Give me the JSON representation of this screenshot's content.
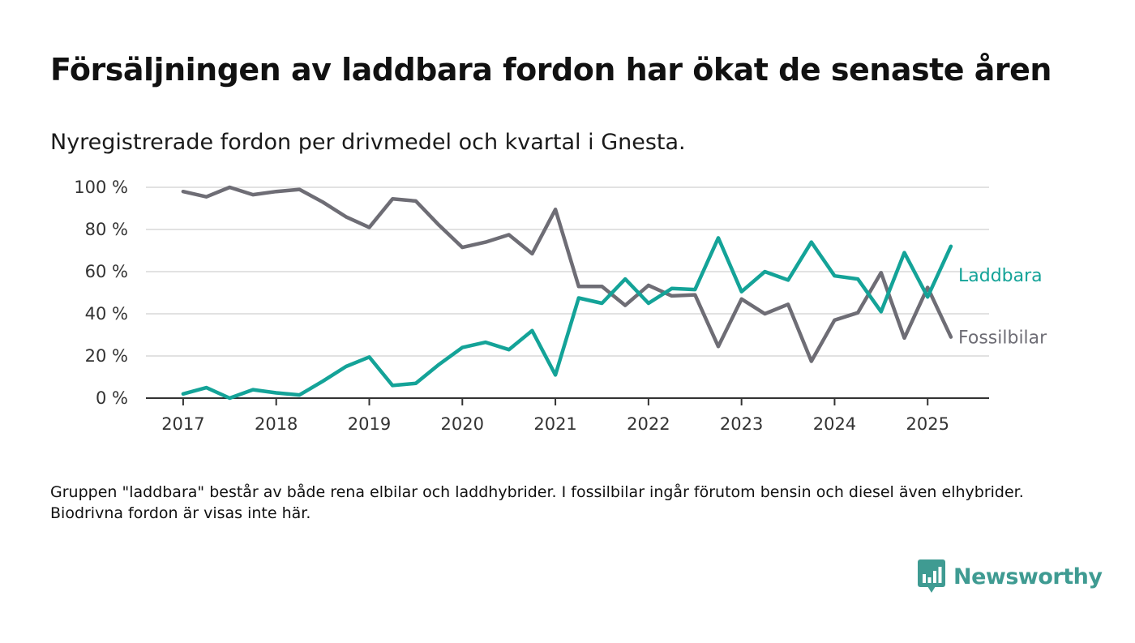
{
  "title": "Försäljningen av laddbara fordon har ökat de senaste åren",
  "subtitle": "Nyregistrerade fordon per drivmedel och kvartal i Gnesta.",
  "footnote": "Gruppen \"laddbara\" består av både rena elbilar och laddhybrider. I fossilbilar ingår förutom bensin och diesel även elhybrider. Biodrivna fordon är visas inte här.",
  "brand": {
    "name": "Newsworthy",
    "icon": "newsworthy-logo-icon",
    "color": "#3f9b92"
  },
  "chart_data": {
    "type": "line",
    "x": [
      2017.0,
      2017.25,
      2017.5,
      2017.75,
      2018.0,
      2018.25,
      2018.5,
      2018.75,
      2019.0,
      2019.25,
      2019.5,
      2019.75,
      2020.0,
      2020.25,
      2020.5,
      2020.75,
      2021.0,
      2021.25,
      2021.5,
      2021.75,
      2022.0,
      2022.25,
      2022.5,
      2022.75,
      2023.0,
      2023.25,
      2023.5,
      2023.75,
      2024.0,
      2024.25,
      2024.5,
      2024.75,
      2025.0,
      2025.25
    ],
    "series": [
      {
        "name": "Laddbara",
        "color": "#14a398",
        "values": [
          2,
          5,
          0,
          4,
          2.5,
          1.5,
          8,
          15,
          19.5,
          6,
          7,
          16,
          24,
          26.5,
          23,
          32,
          11,
          47.5,
          45,
          56.5,
          45,
          52,
          51.5,
          76,
          50.5,
          60,
          56,
          74,
          58,
          56.5,
          41,
          69,
          48,
          72
        ]
      },
      {
        "name": "Fossilbilar",
        "color": "#6e6d75",
        "values": [
          98,
          95.5,
          100,
          96.5,
          98,
          99,
          93,
          86,
          81,
          94.5,
          93.5,
          82,
          71.5,
          74,
          77.5,
          68.5,
          89.5,
          53,
          53,
          44,
          53.5,
          48.5,
          49,
          24.5,
          47,
          40,
          44.5,
          17.5,
          37,
          40.5,
          59.5,
          28.5,
          52.5,
          29
        ]
      }
    ],
    "xticks": [
      2017,
      2018,
      2019,
      2020,
      2021,
      2022,
      2023,
      2024,
      2025
    ],
    "yticks": [
      0,
      20,
      40,
      60,
      80,
      100
    ],
    "ytick_labels": [
      "0 %",
      "20 %",
      "40 %",
      "60 %",
      "80 %",
      "100 %"
    ],
    "xlim": [
      2016.6,
      2025.66
    ],
    "ylim": [
      0,
      100
    ],
    "grid": "horizontal",
    "legend": "inline-right",
    "xlabel": "",
    "ylabel": ""
  }
}
